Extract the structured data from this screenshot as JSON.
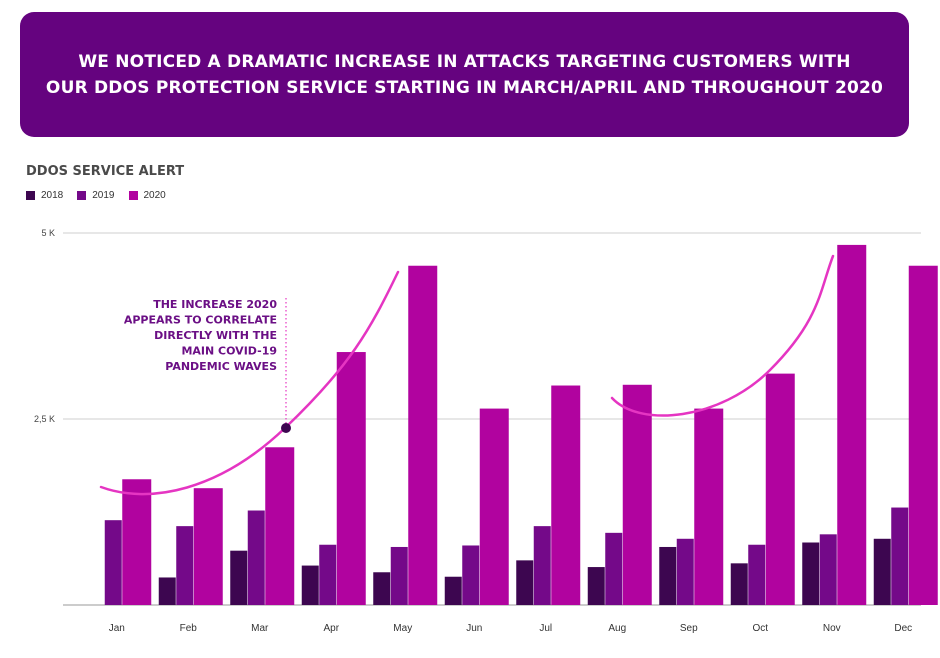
{
  "banner": {
    "line1": "WE NOTICED A DRAMATIC INCREASE IN ATTACKS TARGETING CUSTOMERS WITH",
    "line2": "OUR DDOS PROTECTION SERVICE STARTING IN MARCH/APRIL AND THROUGHOUT 2020"
  },
  "colors": {
    "banner_bg": "#65037f",
    "series_2018": "#3d0650",
    "series_2019": "#740989",
    "series_2020": "#b1039f",
    "trend": "#e535c2",
    "annotation_text": "#6b0f85"
  },
  "chart_data": {
    "type": "bar",
    "title": "DDOS SERVICE ALERT",
    "categories": [
      "Jan",
      "Feb",
      "Mar",
      "Apr",
      "May",
      "Jun",
      "Jul",
      "Aug",
      "Sep",
      "Oct",
      "Nov",
      "Dec"
    ],
    "series": [
      {
        "name": "2018",
        "values": [
          0,
          370,
          730,
          530,
          440,
          380,
          600,
          510,
          780,
          560,
          840,
          890
        ]
      },
      {
        "name": "2019",
        "values": [
          1140,
          1060,
          1270,
          810,
          780,
          800,
          1060,
          970,
          890,
          810,
          950,
          1310
        ]
      },
      {
        "name": "2020",
        "values": [
          1690,
          1570,
          2120,
          3400,
          4560,
          2640,
          2950,
          2960,
          2640,
          3110,
          4840,
          4560
        ]
      }
    ],
    "y_ticks": [
      "5 K",
      "2,5 K"
    ],
    "ylim": [
      0,
      5000
    ],
    "grid": true,
    "legend_position": "top-left",
    "annotation": {
      "lines": [
        "THE INCREASE 2020",
        "APPEARS TO CORRELATE",
        "DIRECTLY WITH THE",
        "MAIN COVID-19",
        "PANDEMIC WAVES"
      ]
    }
  }
}
